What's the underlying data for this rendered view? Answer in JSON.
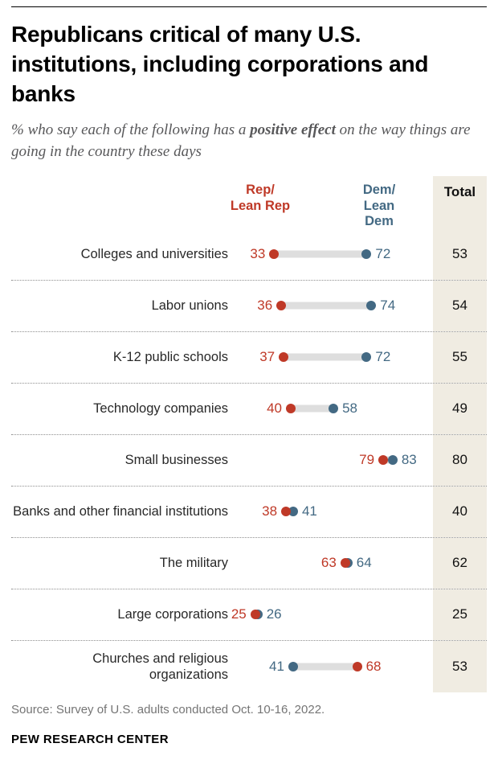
{
  "header": {
    "title": "Republicans critical of many U.S. institutions, including corporations and banks",
    "subtitle_prefix": "% who say each of the following has a ",
    "subtitle_bold": "positive effect",
    "subtitle_suffix": " on the way things are going in the country these days"
  },
  "legend": {
    "rep": "Rep/\nLean Rep",
    "dem": "Dem/\nLean Dem",
    "total": "Total"
  },
  "colors": {
    "rep": "#bf3927",
    "dem": "#436983",
    "connector": "#dedede",
    "total_column_bg": "#f0ece2"
  },
  "chart_data": {
    "type": "dumbbell-dot",
    "title": "Republicans critical of many U.S. institutions, including corporations and banks",
    "xlabel": "",
    "ylabel": "",
    "xlim": [
      0,
      100
    ],
    "grid": false,
    "legend_position": "top",
    "categories": [
      "Colleges and universities",
      "Labor unions",
      "K-12 public schools",
      "Technology companies",
      "Small businesses",
      "Banks and other financial institutions",
      "The military",
      "Large corporations",
      "Churches and religious organizations"
    ],
    "series": [
      {
        "name": "Rep/Lean Rep",
        "values": [
          33,
          36,
          37,
          40,
          79,
          38,
          63,
          25,
          68
        ]
      },
      {
        "name": "Dem/Lean Dem",
        "values": [
          72,
          74,
          72,
          58,
          83,
          41,
          64,
          26,
          41
        ]
      }
    ],
    "totals": [
      53,
      54,
      55,
      49,
      80,
      40,
      62,
      25,
      53
    ]
  },
  "footer": {
    "source": "Source: Survey of U.S. adults conducted Oct. 10-16, 2022.",
    "brand": "PEW RESEARCH CENTER"
  }
}
